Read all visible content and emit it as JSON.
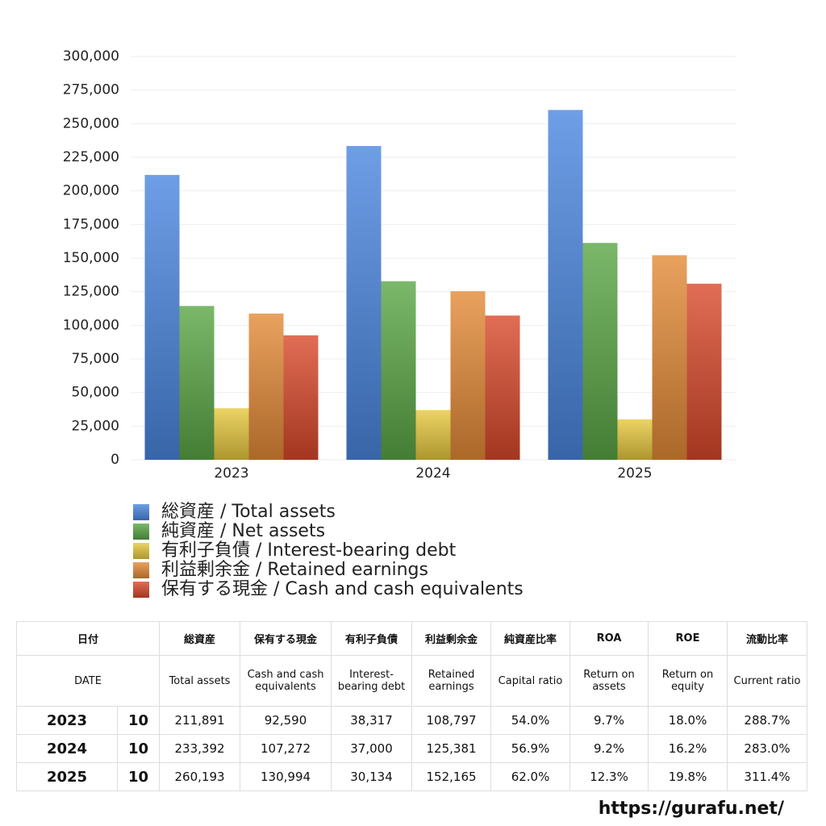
{
  "chart_data": {
    "type": "bar",
    "categories": [
      "2023",
      "2024",
      "2025"
    ],
    "series": [
      {
        "name": "総資産 / Total assets",
        "color": "#4a86e0",
        "values": [
          211891,
          233392,
          260193
        ]
      },
      {
        "name": "純資産 / Net assets",
        "color": "#5aa645",
        "values": [
          114400,
          132800,
          161300
        ]
      },
      {
        "name": "有利子負債 / Interest-bearing debt",
        "color": "#e6c83e",
        "values": [
          38317,
          37000,
          30134
        ]
      },
      {
        "name": "利益剰余金 / Retained earnings",
        "color": "#e48a36",
        "values": [
          108797,
          125381,
          152165
        ]
      },
      {
        "name": "保有する現金 /  Cash and cash equivalents",
        "color": "#d9482a",
        "values": [
          92590,
          107272,
          130994
        ]
      }
    ],
    "ylim": [
      0,
      300000
    ],
    "yticks": [
      0,
      {
        "value": 25000,
        "label": "25,000"
      },
      {
        "value": 50000,
        "label": "50,000"
      },
      {
        "value": 75000,
        "label": "75,000"
      },
      {
        "value": 100000,
        "label": "100,000"
      },
      {
        "value": 125000,
        "label": "125,000"
      },
      {
        "value": 150000,
        "label": "150,000"
      },
      {
        "value": 175000,
        "label": "175,000"
      },
      {
        "value": 200000,
        "label": "200,000"
      },
      {
        "value": 225000,
        "label": "225,000"
      },
      {
        "value": 250000,
        "label": "250,000"
      },
      {
        "value": 275000,
        "label": "275,000"
      },
      {
        "value": 300000,
        "label": "300,000"
      }
    ],
    "grid": true,
    "legend": "bottom"
  },
  "table": {
    "header_ja": [
      "日付",
      "総資産",
      "保有する現金",
      "有利子負債",
      "利益剰余金",
      "純資産比率",
      "ROA",
      "ROE",
      "流動比率"
    ],
    "header_en": [
      "DATE",
      "Total assets",
      "Cash and cash equivalents",
      "Interest-bearing debt",
      "Retained earnings",
      "Capital ratio",
      "Return on assets",
      "Return on equity",
      "Current ratio"
    ],
    "rows": [
      [
        "2023",
        "10",
        "211,891",
        "92,590",
        "38,317",
        "108,797",
        "54.0%",
        "9.7%",
        "18.0%",
        "288.7%"
      ],
      [
        "2024",
        "10",
        "233,392",
        "107,272",
        "37,000",
        "125,381",
        "56.9%",
        "9.2%",
        "16.2%",
        "283.0%"
      ],
      [
        "2025",
        "10",
        "260,193",
        "130,994",
        "30,134",
        "152,165",
        "62.0%",
        "12.3%",
        "19.8%",
        "311.4%"
      ]
    ]
  },
  "footer": "https://gurafu.net/"
}
